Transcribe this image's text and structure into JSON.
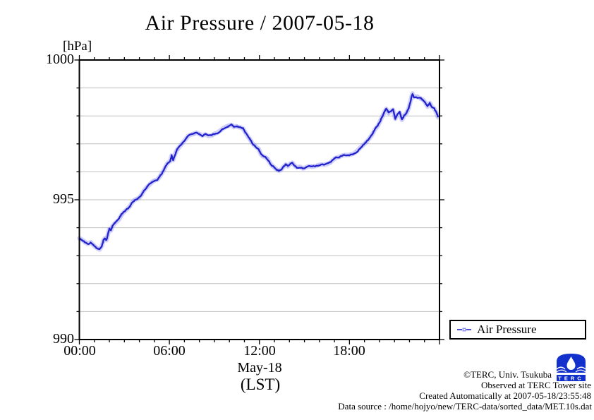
{
  "title": "Air Pressure / 2007-05-18",
  "y_unit_label": "[hPa]",
  "y_axis": {
    "labels": [
      "1000",
      "995",
      "990"
    ]
  },
  "x_axis": {
    "labels": [
      "00:00",
      "06:00",
      "12:00",
      "18:00"
    ],
    "sub_label": "May-18",
    "sub_label2": "(LST)"
  },
  "legend": {
    "label": "Air Pressure"
  },
  "footer": {
    "copyright": "©TERC, Univ. Tsukuba",
    "observed": "Observed at TERC Tower site",
    "created": "Created Automatically at 2007-05-18/23:55:48",
    "datasource": "Data source : /home/hojyo/new/TERC-data/sorted_data/MET.10s.dat"
  },
  "logo": {
    "text": "TERC"
  },
  "colors": {
    "line": "#2222cc",
    "halo": "rgba(110,110,240,0.30)",
    "dots": "rgba(110,110,240,0.28)",
    "grid": "#bfbfbf",
    "frame": "#000000",
    "logo_blue": "#1230cc"
  },
  "chart_data": {
    "type": "line",
    "title": "Air Pressure / 2007-05-18",
    "xlabel": "May-18 (LST)",
    "ylabel": "[hPa]",
    "xlim_hours": [
      0,
      24
    ],
    "ylim": [
      990,
      1000
    ],
    "x_major_tick_hours": 6,
    "x_minor_tick_hours": 1,
    "y_major_tick": 5,
    "y_minor_tick": 1,
    "grid": "horizontal every 1 hPa",
    "legend_position": "outside-bottom-right",
    "series": [
      {
        "name": "Air Pressure",
        "t_hours": [
          0.0,
          0.15,
          0.3,
          0.45,
          0.6,
          0.75,
          0.9,
          1.05,
          1.2,
          1.35,
          1.5,
          1.6,
          1.7,
          1.8,
          1.9,
          2.0,
          2.1,
          2.2,
          2.35,
          2.5,
          2.65,
          2.8,
          2.95,
          3.1,
          3.25,
          3.4,
          3.55,
          3.7,
          3.85,
          4.0,
          4.15,
          4.3,
          4.45,
          4.6,
          4.75,
          4.9,
          5.05,
          5.2,
          5.35,
          5.5,
          5.65,
          5.8,
          5.95,
          6.05,
          6.15,
          6.25,
          6.35,
          6.5,
          6.65,
          6.8,
          6.95,
          7.1,
          7.25,
          7.4,
          7.6,
          7.8,
          8.0,
          8.2,
          8.4,
          8.6,
          8.8,
          9.0,
          9.2,
          9.4,
          9.6,
          9.8,
          10.0,
          10.15,
          10.3,
          10.45,
          10.6,
          10.75,
          10.9,
          11.05,
          11.2,
          11.35,
          11.5,
          11.65,
          11.8,
          11.95,
          12.1,
          12.25,
          12.4,
          12.55,
          12.7,
          12.85,
          13.0,
          13.15,
          13.3,
          13.45,
          13.6,
          13.75,
          13.9,
          14.05,
          14.2,
          14.35,
          14.5,
          14.7,
          14.9,
          15.1,
          15.3,
          15.5,
          15.7,
          15.9,
          16.1,
          16.3,
          16.5,
          16.7,
          16.9,
          17.1,
          17.3,
          17.5,
          17.7,
          17.9,
          18.1,
          18.3,
          18.5,
          18.7,
          18.9,
          19.1,
          19.3,
          19.5,
          19.7,
          19.9,
          20.1,
          20.3,
          20.45,
          20.6,
          20.75,
          20.9,
          21.05,
          21.2,
          21.35,
          21.5,
          21.65,
          21.8,
          21.95,
          22.1,
          22.2,
          22.3,
          22.45,
          22.6,
          22.75,
          22.9,
          23.05,
          23.2,
          23.35,
          23.5,
          23.65,
          23.8,
          23.9
        ],
        "p_hpa": [
          993.62,
          993.58,
          993.52,
          993.45,
          993.42,
          993.48,
          993.4,
          993.32,
          993.26,
          993.22,
          993.35,
          993.55,
          993.62,
          993.55,
          993.75,
          993.95,
          993.9,
          994.05,
          994.15,
          994.22,
          994.3,
          994.45,
          994.55,
          994.62,
          994.7,
          994.8,
          994.92,
          995.0,
          995.03,
          995.08,
          995.18,
          995.32,
          995.42,
          995.5,
          995.58,
          995.65,
          995.7,
          995.72,
          995.82,
          995.95,
          996.08,
          996.25,
          996.35,
          996.38,
          996.58,
          996.42,
          996.6,
          996.78,
          996.88,
          996.98,
          997.08,
          997.18,
          997.28,
          997.32,
          997.36,
          997.4,
          997.35,
          997.3,
          997.34,
          997.28,
          997.3,
          997.36,
          997.4,
          997.48,
          997.56,
          997.62,
          997.66,
          997.68,
          997.6,
          997.63,
          997.6,
          997.58,
          997.55,
          997.42,
          997.28,
          997.18,
          997.05,
          996.95,
          996.88,
          996.82,
          996.62,
          996.55,
          996.52,
          996.45,
          996.32,
          996.22,
          996.15,
          996.08,
          996.04,
          996.08,
          996.18,
          996.26,
          996.2,
          996.28,
          996.32,
          996.22,
          996.16,
          996.18,
          996.12,
          996.16,
          996.2,
          996.18,
          996.2,
          996.23,
          996.26,
          996.25,
          996.28,
          996.32,
          996.42,
          996.5,
          996.53,
          996.58,
          996.6,
          996.6,
          996.62,
          996.66,
          996.74,
          996.85,
          996.95,
          997.05,
          997.18,
          997.32,
          997.52,
          997.65,
          997.88,
          998.1,
          998.25,
          998.1,
          998.18,
          998.22,
          997.9,
          998.05,
          998.12,
          997.86,
          998.02,
          998.1,
          998.28,
          998.6,
          998.8,
          998.68,
          998.7,
          998.66,
          998.62,
          998.58,
          998.48,
          998.33,
          998.46,
          998.32,
          998.26,
          998.1,
          997.95
        ]
      }
    ]
  }
}
